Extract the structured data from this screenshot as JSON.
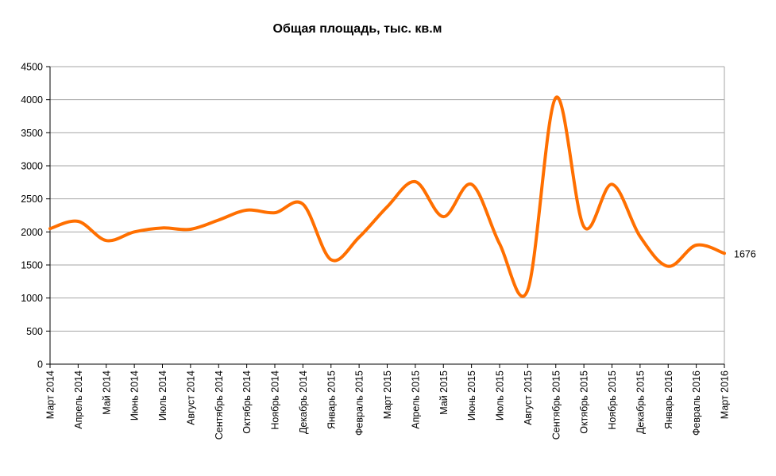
{
  "chart_data": {
    "type": "line",
    "title": "Общая площадь, тыс. кв.м",
    "xlabel": "",
    "ylabel": "",
    "ylim": [
      0,
      4500
    ],
    "yticks": [
      0,
      500,
      1000,
      1500,
      2000,
      2500,
      3000,
      3500,
      4000,
      4500
    ],
    "grid": true,
    "legend": "none",
    "line_color": "#FF6F00",
    "categories": [
      "Март 2014",
      "Апрель 2014",
      "Май 2014",
      "Июнь 2014",
      "Июль 2014",
      "Август 2014",
      "Сентябрь 2014",
      "Октябрь 2014",
      "Ноябрь 2014",
      "Декабрь 2014",
      "Январь 2015",
      "Февраль 2015",
      "Март 2015",
      "Апрель 2015",
      "Май 2015",
      "Июнь 2015",
      "Июль 2015",
      "Август 2015",
      "Сентябрь 2015",
      "Октябрь 2015",
      "Ноябрь 2015",
      "Декабрь 2015",
      "Январь 2016",
      "Февраль 2016",
      "Март 2016"
    ],
    "series": [
      {
        "values": [
          2050,
          2160,
          1870,
          2000,
          2060,
          2040,
          2180,
          2330,
          2290,
          2420,
          1580,
          1920,
          2380,
          2760,
          2230,
          2720,
          1820,
          1120,
          4030,
          2080,
          2720,
          1930,
          1480,
          1800,
          1676
        ]
      }
    ],
    "annotations": [
      {
        "category": "Март 2016",
        "text": "1676"
      }
    ]
  }
}
